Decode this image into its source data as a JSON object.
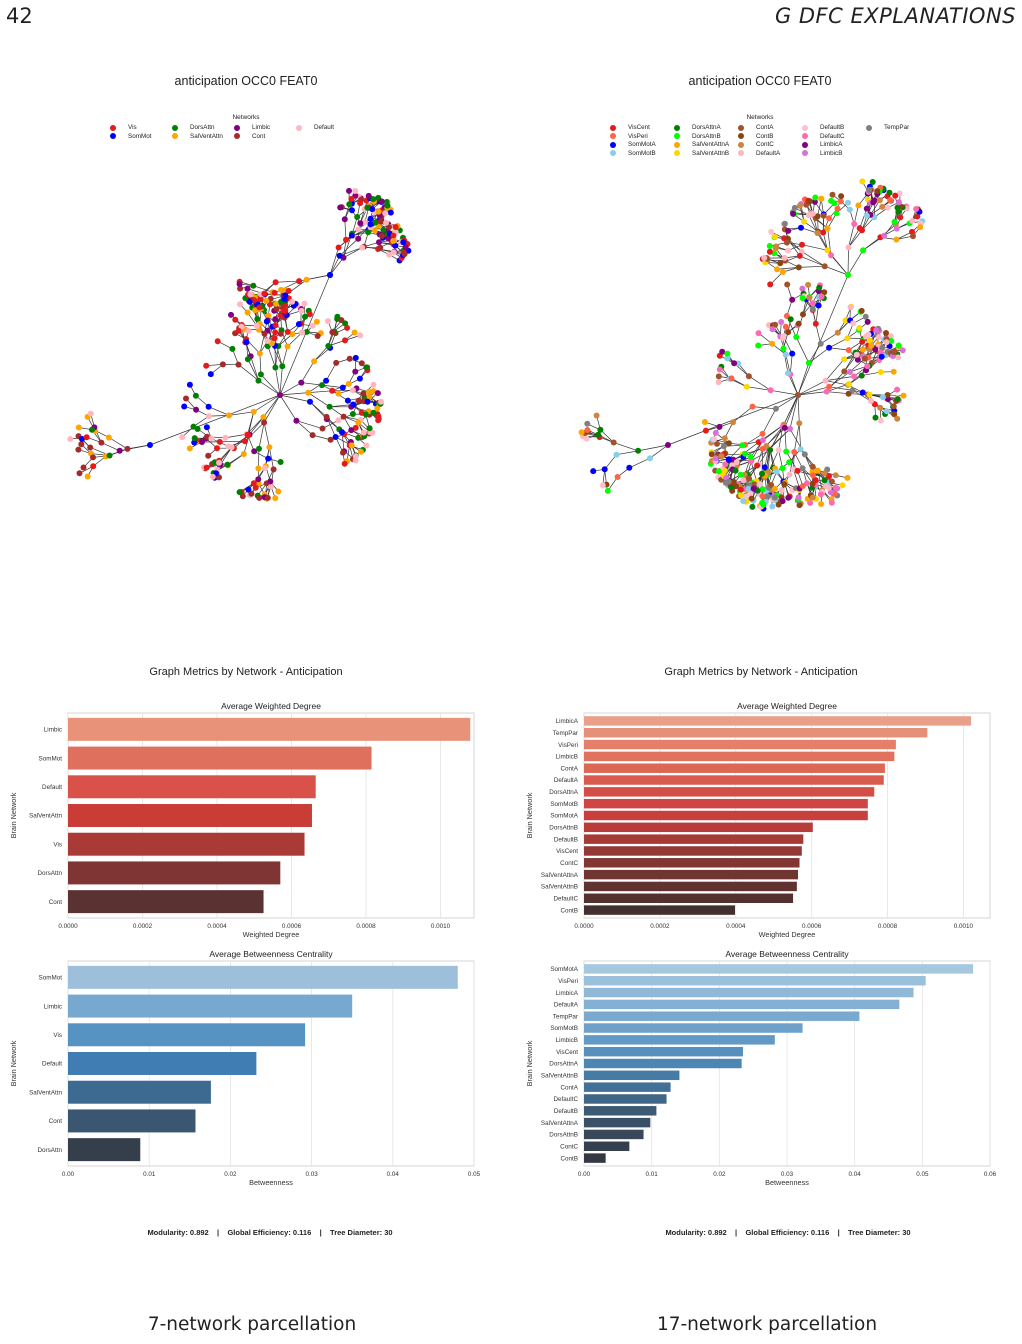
{
  "page": {
    "number": "42",
    "header": "G   DFC EXPLANATIONS",
    "captions": [
      "7-network parcellation",
      "17-network parcellation"
    ]
  },
  "graphs": [
    {
      "title": "anticipation OCC0 FEAT0",
      "legend_title": "Networks",
      "legend": [
        {
          "name": "Vis",
          "color": "#e41a1c"
        },
        {
          "name": "SomMot",
          "color": "#0000ff"
        },
        {
          "name": "DorsAttn",
          "color": "#008000"
        },
        {
          "name": "SalVentAttn",
          "color": "#ffa500"
        },
        {
          "name": "Limbic",
          "color": "#800080"
        },
        {
          "name": "Cont",
          "color": "#a52a2a"
        },
        {
          "name": "Default",
          "color": "#ffb6c1"
        }
      ]
    },
    {
      "title": "anticipation OCC0 FEAT0",
      "legend_title": "Networks",
      "legend": [
        {
          "name": "VisCent",
          "color": "#e41a1c"
        },
        {
          "name": "VisPeri",
          "color": "#ff6347"
        },
        {
          "name": "SomMotA",
          "color": "#0000ff"
        },
        {
          "name": "SomMotB",
          "color": "#87ceeb"
        },
        {
          "name": "DorsAttnA",
          "color": "#008000"
        },
        {
          "name": "DorsAttnB",
          "color": "#00ff00"
        },
        {
          "name": "SalVentAttnA",
          "color": "#ffa500"
        },
        {
          "name": "SalVentAttnB",
          "color": "#ffd700"
        },
        {
          "name": "ContA",
          "color": "#a0522d"
        },
        {
          "name": "ContB",
          "color": "#8b4513"
        },
        {
          "name": "ContC",
          "color": "#cd853f"
        },
        {
          "name": "DefaultA",
          "color": "#ffb6c1"
        },
        {
          "name": "DefaultB",
          "color": "#ffc0cb"
        },
        {
          "name": "DefaultC",
          "color": "#ff69b4"
        },
        {
          "name": "LimbicA",
          "color": "#800080"
        },
        {
          "name": "LimbicB",
          "color": "#da70d6"
        },
        {
          "name": "TempPar",
          "color": "#808080"
        }
      ]
    }
  ],
  "metrics": [
    {
      "title": "Graph Metrics by Network - Anticipation",
      "footer": "Modularity: 0.892    |    Global Efficiency: 0.116    |    Tree Diameter: 30"
    },
    {
      "title": "Graph Metrics by Network - Anticipation",
      "footer": "Modularity: 0.892    |    Global Efficiency: 0.116    |    Tree Diameter: 30"
    }
  ],
  "chart_data": [
    {
      "type": "bar",
      "orientation": "horizontal",
      "title": "Average Weighted Degree",
      "xlabel": "Weighted Degree",
      "ylabel": "Brain Network",
      "categories": [
        "Limbic",
        "SomMot",
        "Default",
        "SalVentAttn",
        "Vis",
        "DorsAttn",
        "Cont"
      ],
      "values": [
        0.00108,
        0.000815,
        0.000665,
        0.000655,
        0.000635,
        0.00057,
        0.000525
      ],
      "xlim": [
        0,
        0.00109
      ],
      "xticks": [
        0,
        0.0002,
        0.0004,
        0.0006,
        0.0008,
        0.001
      ],
      "xtick_labels": [
        "0.0000",
        "0.0002",
        "0.0004",
        "0.0006",
        "0.0008",
        "0.0010"
      ],
      "palette": [
        "#e8927a",
        "#e0705e",
        "#d8524a",
        "#c93d36",
        "#a93a35",
        "#7f3533",
        "#5a3232"
      ]
    },
    {
      "type": "bar",
      "orientation": "horizontal",
      "title": "Average Betweenness Centrality",
      "xlabel": "Betweenness",
      "ylabel": "Brain Network",
      "categories": [
        "SomMot",
        "Limbic",
        "Vis",
        "Default",
        "SalVentAttn",
        "Cont",
        "DorsAttn"
      ],
      "values": [
        0.048,
        0.035,
        0.0292,
        0.0232,
        0.0176,
        0.0157,
        0.0089
      ],
      "xlim": [
        0,
        0.05
      ],
      "xticks": [
        0,
        0.01,
        0.02,
        0.03,
        0.04,
        0.05
      ],
      "xtick_labels": [
        "0.00",
        "0.01",
        "0.02",
        "0.03",
        "0.04",
        "0.05"
      ],
      "palette": [
        "#9dbfdb",
        "#77a9d0",
        "#5693c2",
        "#3f7db3",
        "#3d6a91",
        "#3a5670",
        "#353f4c"
      ]
    },
    {
      "type": "bar",
      "orientation": "horizontal",
      "title": "Average Weighted Degree",
      "xlabel": "Weighted Degree",
      "ylabel": "Brain Network",
      "categories": [
        "LimbicA",
        "TempPar",
        "VisPeri",
        "LimbicB",
        "ContA",
        "DefaultA",
        "DorsAttnA",
        "SomMotB",
        "SomMotA",
        "DorsAttnB",
        "DefaultB",
        "VisCent",
        "ContC",
        "SalVentAttnA",
        "SalVentAttnB",
        "DefaultC",
        "ContB"
      ],
      "values": [
        0.00102,
        0.000905,
        0.000822,
        0.000818,
        0.000793,
        0.00079,
        0.000765,
        0.000748,
        0.000748,
        0.000603,
        0.000578,
        0.000574,
        0.000568,
        0.000564,
        0.000561,
        0.000551,
        0.000398
      ],
      "xlim": [
        0,
        0.00107
      ],
      "xticks": [
        0,
        0.0002,
        0.0004,
        0.0006,
        0.0008,
        0.001
      ],
      "xtick_labels": [
        "0.0000",
        "0.0002",
        "0.0004",
        "0.0006",
        "0.0008",
        "0.0010"
      ],
      "palette": [
        "#e9a08a",
        "#e68f78",
        "#e48069",
        "#e1735e",
        "#dd6655",
        "#d95a4e",
        "#d44e48",
        "#cf4543",
        "#c93f3e",
        "#b83c3a",
        "#a63a37",
        "#933834",
        "#813632",
        "#703431",
        "#603330",
        "#52312f",
        "#43302e"
      ]
    },
    {
      "type": "bar",
      "orientation": "horizontal",
      "title": "Average Betweenness Centrality",
      "xlabel": "Betweenness",
      "ylabel": "Brain Network",
      "categories": [
        "SomMotA",
        "VisPeri",
        "LimbicA",
        "DefaultA",
        "TempPar",
        "SomMotB",
        "LimbicB",
        "VisCent",
        "DorsAttnA",
        "SalVentAttnB",
        "ContA",
        "DefaultC",
        "DefaultB",
        "SalVentAttnA",
        "DorsAttnB",
        "ContC",
        "ContB"
      ],
      "values": [
        0.0575,
        0.0505,
        0.0487,
        0.0466,
        0.0407,
        0.0323,
        0.0282,
        0.0235,
        0.0233,
        0.0141,
        0.0128,
        0.0122,
        0.0107,
        0.0098,
        0.0088,
        0.0067,
        0.0032
      ],
      "xlim": [
        0,
        0.06
      ],
      "xticks": [
        0,
        0.01,
        0.02,
        0.03,
        0.04,
        0.05,
        0.06
      ],
      "xtick_labels": [
        "0.00",
        "0.01",
        "0.02",
        "0.03",
        "0.04",
        "0.05",
        "0.06"
      ],
      "palette": [
        "#a6c7e0",
        "#9bc0dc",
        "#90b8d7",
        "#84b0d3",
        "#79a9cf",
        "#6ea1ca",
        "#6399c5",
        "#578fbd",
        "#4d86b3",
        "#467ba6",
        "#437096",
        "#406585",
        "#3d5a75",
        "#3a5066",
        "#384759",
        "#363f4d",
        "#343842"
      ]
    }
  ]
}
